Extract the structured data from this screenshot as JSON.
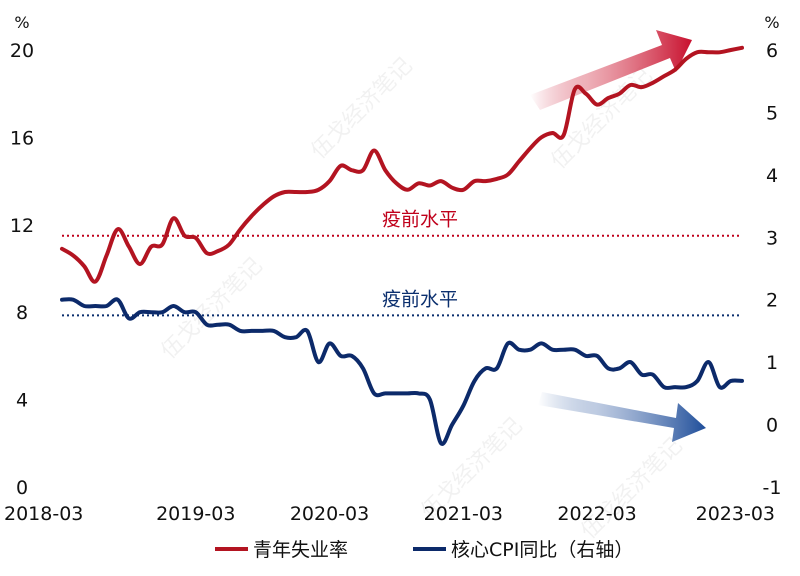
{
  "chart_data": {
    "type": "line",
    "left_unit": "%",
    "right_unit": "%",
    "left_ylim": [
      0,
      20
    ],
    "right_ylim": [
      -1,
      6
    ],
    "left_ticks": [
      "0",
      "4",
      "8",
      "12",
      "16",
      "20"
    ],
    "right_ticks": [
      "-1",
      "0",
      "1",
      "2",
      "3",
      "4",
      "5",
      "6"
    ],
    "x_ticks": [
      "2018-03",
      "2019-03",
      "2020-03",
      "2021-03",
      "2022-03",
      "2023-03"
    ],
    "x_range": [
      "2018-03",
      "2023-04"
    ],
    "reference_lines": [
      {
        "label": "疫前水平",
        "axis": "left",
        "value": 11.5,
        "color": "#c0001b"
      },
      {
        "label": "疫前水平",
        "axis": "right",
        "value": 1.75,
        "color": "#0b2f6e"
      }
    ],
    "series": [
      {
        "name": "青年失业率",
        "axis": "left",
        "color": "#b31421",
        "x": [
          "2018-03",
          "2018-04",
          "2018-05",
          "2018-06",
          "2018-07",
          "2018-08",
          "2018-09",
          "2018-10",
          "2018-11",
          "2018-12",
          "2019-01",
          "2019-02",
          "2019-03",
          "2019-04",
          "2019-05",
          "2019-06",
          "2019-07",
          "2019-08",
          "2019-09",
          "2019-10",
          "2019-11",
          "2019-12",
          "2020-01",
          "2020-02",
          "2020-03",
          "2020-04",
          "2020-05",
          "2020-06",
          "2020-07",
          "2020-08",
          "2020-09",
          "2020-10",
          "2020-11",
          "2020-12",
          "2021-01",
          "2021-02",
          "2021-03",
          "2021-04",
          "2021-05",
          "2021-06",
          "2021-07",
          "2021-08",
          "2021-09",
          "2021-10",
          "2021-11",
          "2021-12",
          "2022-01",
          "2022-02",
          "2022-03",
          "2022-04",
          "2022-05",
          "2022-06",
          "2022-07",
          "2022-08",
          "2022-09",
          "2022-10",
          "2022-11",
          "2022-12",
          "2023-01",
          "2023-02",
          "2023-03",
          "2023-04"
        ],
        "values": [
          10.9,
          10.6,
          10.1,
          9.4,
          10.6,
          11.8,
          11.0,
          10.2,
          11.0,
          11.1,
          12.3,
          11.5,
          11.4,
          10.7,
          10.8,
          11.1,
          11.8,
          12.4,
          12.9,
          13.3,
          13.5,
          13.5,
          13.5,
          13.6,
          14.0,
          14.7,
          14.5,
          14.5,
          15.4,
          14.5,
          13.9,
          13.6,
          13.9,
          13.8,
          14.0,
          13.7,
          13.6,
          14.0,
          14.0,
          14.1,
          14.3,
          14.9,
          15.5,
          16.0,
          16.2,
          16.1,
          18.2,
          18.0,
          17.5,
          17.8,
          18.0,
          18.4,
          18.3,
          18.5,
          18.8,
          19.1,
          19.6,
          19.9,
          19.9,
          19.9,
          20.0,
          20.1
        ]
      },
      {
        "name": "核心CPI同比（右轴）",
        "axis": "right",
        "color": "#0c2a6a",
        "x": [
          "2018-03",
          "2018-04",
          "2018-05",
          "2018-06",
          "2018-07",
          "2018-08",
          "2018-09",
          "2018-10",
          "2018-11",
          "2018-12",
          "2019-01",
          "2019-02",
          "2019-03",
          "2019-04",
          "2019-05",
          "2019-06",
          "2019-07",
          "2019-08",
          "2019-09",
          "2019-10",
          "2019-11",
          "2019-12",
          "2020-01",
          "2020-02",
          "2020-03",
          "2020-04",
          "2020-05",
          "2020-06",
          "2020-07",
          "2020-08",
          "2020-09",
          "2020-10",
          "2020-11",
          "2020-12",
          "2021-01",
          "2021-02",
          "2021-03",
          "2021-04",
          "2021-05",
          "2021-06",
          "2021-07",
          "2021-08",
          "2021-09",
          "2021-10",
          "2021-11",
          "2021-12",
          "2022-01",
          "2022-02",
          "2022-03",
          "2022-04",
          "2022-05",
          "2022-06",
          "2022-07",
          "2022-08",
          "2022-09",
          "2022-10",
          "2022-11",
          "2022-12",
          "2023-01",
          "2023-02",
          "2023-03",
          "2023-04"
        ],
        "values": [
          2.0,
          2.0,
          1.9,
          1.9,
          1.9,
          2.0,
          1.7,
          1.8,
          1.8,
          1.8,
          1.9,
          1.8,
          1.8,
          1.6,
          1.6,
          1.6,
          1.5,
          1.5,
          1.5,
          1.5,
          1.4,
          1.4,
          1.5,
          1.0,
          1.3,
          1.1,
          1.1,
          0.9,
          0.5,
          0.5,
          0.5,
          0.5,
          0.5,
          0.4,
          -0.3,
          0.0,
          0.3,
          0.7,
          0.9,
          0.9,
          1.3,
          1.2,
          1.2,
          1.3,
          1.2,
          1.2,
          1.2,
          1.1,
          1.1,
          0.9,
          0.9,
          1.0,
          0.8,
          0.8,
          0.6,
          0.6,
          0.6,
          0.7,
          1.0,
          0.6,
          0.7,
          0.7
        ]
      }
    ]
  }
}
